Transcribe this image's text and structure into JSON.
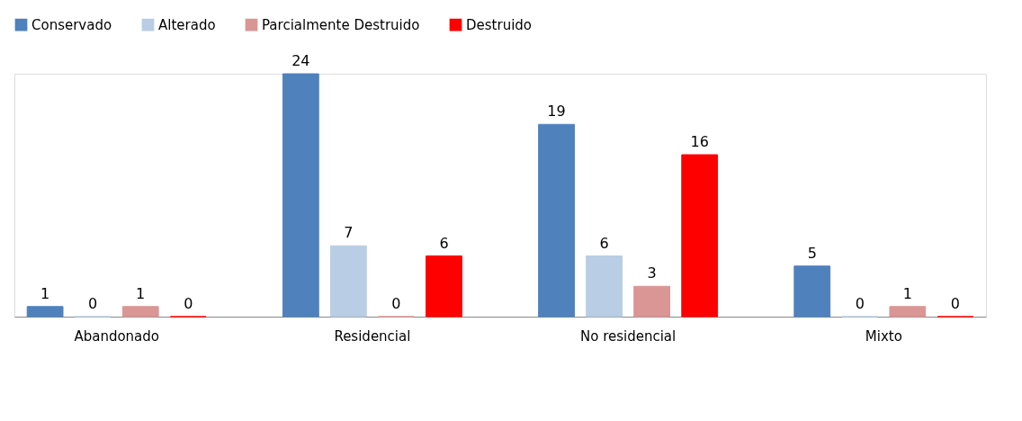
{
  "chart_data": {
    "type": "bar",
    "categories": [
      "Abandonado",
      "Residencial",
      "No residencial",
      "Mixto"
    ],
    "series": [
      {
        "name": "Conservado",
        "color": "#4f81bd",
        "values": [
          1,
          24,
          19,
          5
        ]
      },
      {
        "name": "Alterado",
        "color": "#b9cde5",
        "values": [
          0,
          7,
          6,
          0
        ]
      },
      {
        "name": "Parcialmente Destruido",
        "color": "#d99694",
        "values": [
          1,
          0,
          3,
          1
        ]
      },
      {
        "name": "Destruido",
        "color": "#ff0000",
        "values": [
          0,
          6,
          16,
          0
        ]
      }
    ],
    "data_labels": true,
    "legend": "top",
    "grid": false,
    "tick_labels": "x"
  }
}
